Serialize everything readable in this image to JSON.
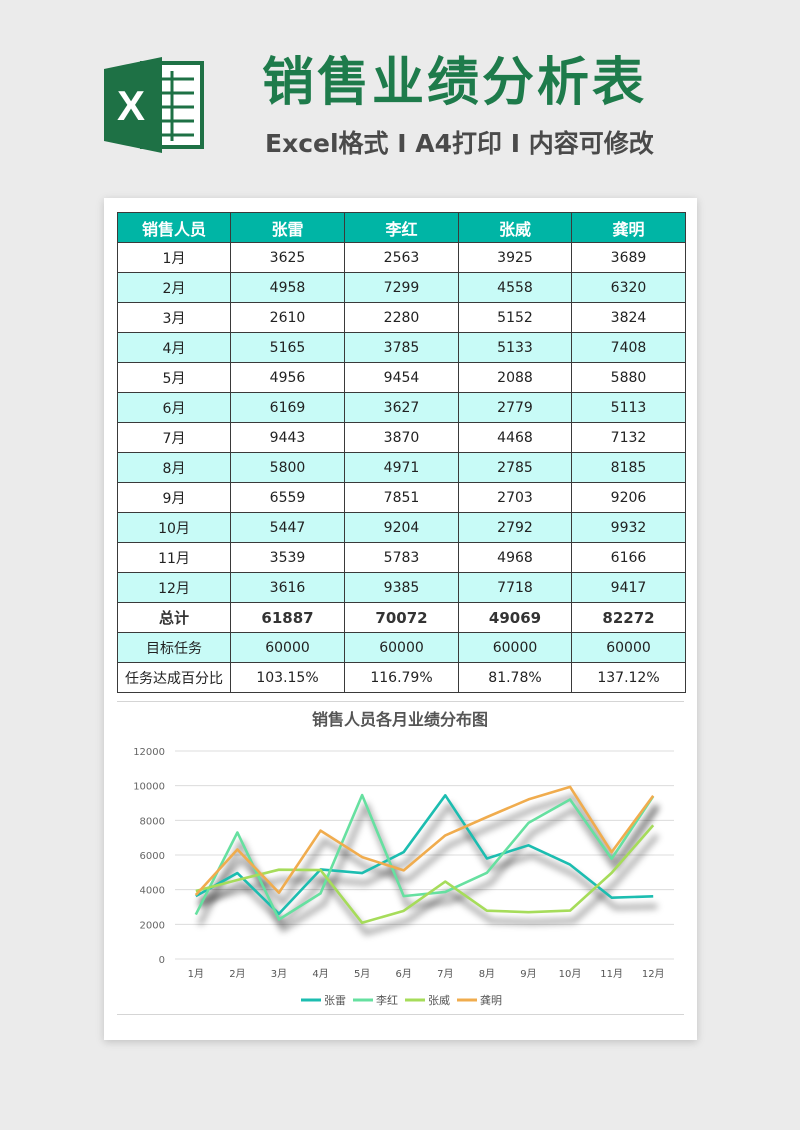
{
  "header": {
    "title": "销售业绩分析表",
    "subtitle": "Excel格式 I A4打印 I 内容可修改"
  },
  "logo": {
    "icon": "excel-icon",
    "letter": "X",
    "color": "#1e7145"
  },
  "colors": {
    "header_bg": "#00b5a5",
    "alt_row_bg": "#c8fbf7",
    "title_green": "#1e7b4b"
  },
  "table": {
    "columns": [
      "销售人员",
      "张雷",
      "李红",
      "张威",
      "龚明"
    ],
    "rows": [
      [
        "1月",
        "3625",
        "2563",
        "3925",
        "3689"
      ],
      [
        "2月",
        "4958",
        "7299",
        "4558",
        "6320"
      ],
      [
        "3月",
        "2610",
        "2280",
        "5152",
        "3824"
      ],
      [
        "4月",
        "5165",
        "3785",
        "5133",
        "7408"
      ],
      [
        "5月",
        "4956",
        "9454",
        "2088",
        "5880"
      ],
      [
        "6月",
        "6169",
        "3627",
        "2779",
        "5113"
      ],
      [
        "7月",
        "9443",
        "3870",
        "4468",
        "7132"
      ],
      [
        "8月",
        "5800",
        "4971",
        "2785",
        "8185"
      ],
      [
        "9月",
        "6559",
        "7851",
        "2703",
        "9206"
      ],
      [
        "10月",
        "5447",
        "9204",
        "2792",
        "9932"
      ],
      [
        "11月",
        "3539",
        "5783",
        "4968",
        "6166"
      ],
      [
        "12月",
        "3616",
        "9385",
        "7718",
        "9417"
      ]
    ],
    "total": [
      "总计",
      "61887",
      "70072",
      "49069",
      "82272"
    ],
    "target": [
      "目标任务",
      "60000",
      "60000",
      "60000",
      "60000"
    ],
    "rate": [
      "任务达成百分比",
      "103.15%",
      "116.79%",
      "81.78%",
      "137.12%"
    ]
  },
  "chart_data": {
    "type": "line",
    "title": "销售人员各月业绩分布图",
    "categories": [
      "1月",
      "2月",
      "3月",
      "4月",
      "5月",
      "6月",
      "7月",
      "8月",
      "9月",
      "10月",
      "11月",
      "12月"
    ],
    "ylim": [
      0,
      12000
    ],
    "yticks": [
      "0",
      "2000",
      "4000",
      "6000",
      "8000",
      "10000",
      "12000"
    ],
    "grid": true,
    "legend_position": "bottom",
    "series": [
      {
        "name": "张雷",
        "color": "#1cbdb0",
        "values": [
          3625,
          4958,
          2610,
          5165,
          4956,
          6169,
          9443,
          5800,
          6559,
          5447,
          3539,
          3616
        ]
      },
      {
        "name": "李红",
        "color": "#66e0a0",
        "values": [
          2563,
          7299,
          2280,
          3785,
          9454,
          3627,
          3870,
          4971,
          7851,
          9204,
          5783,
          9385
        ]
      },
      {
        "name": "张威",
        "color": "#a6dc5a",
        "values": [
          3925,
          4558,
          5152,
          5133,
          2088,
          2779,
          4468,
          2785,
          2703,
          2792,
          4968,
          7718
        ]
      },
      {
        "name": "龚明",
        "color": "#f0ac4e",
        "values": [
          3689,
          6320,
          3824,
          7408,
          5880,
          5113,
          7132,
          8185,
          9206,
          9932,
          6166,
          9417
        ]
      }
    ]
  }
}
